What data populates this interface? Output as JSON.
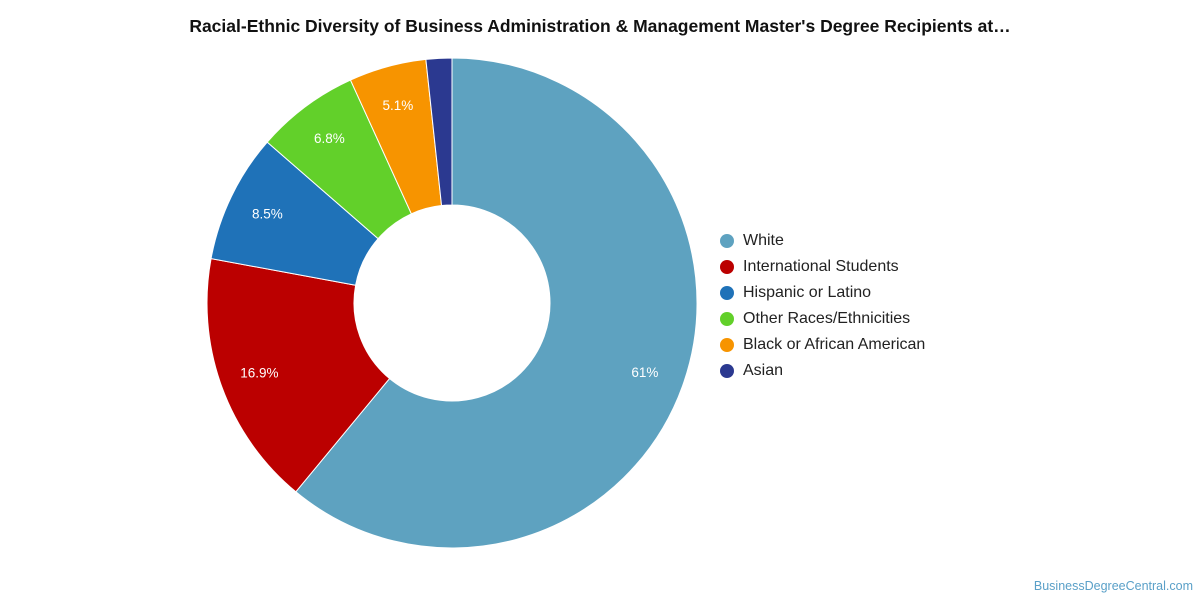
{
  "chart_data": {
    "type": "pie",
    "title": "Racial-Ethnic Diversity of Business Administration & Management Master's Degree Recipients at…",
    "donut": true,
    "legend_position": "right",
    "series": [
      {
        "name": "White",
        "value": 61,
        "label": "61%",
        "color": "#5ea2c0"
      },
      {
        "name": "International Students",
        "value": 16.9,
        "label": "16.9%",
        "color": "#bb0000"
      },
      {
        "name": "Hispanic or Latino",
        "value": 8.5,
        "label": "8.5%",
        "color": "#1f72b8"
      },
      {
        "name": "Other Races/Ethnicities",
        "value": 6.8,
        "label": "6.8%",
        "color": "#62d02a"
      },
      {
        "name": "Black or African American",
        "value": 5.1,
        "label": "5.1%",
        "color": "#f79400"
      },
      {
        "name": "Asian",
        "value": 1.7,
        "label": "",
        "color": "#2b3990"
      }
    ]
  },
  "watermark": "BusinessDegreeCentral.com"
}
